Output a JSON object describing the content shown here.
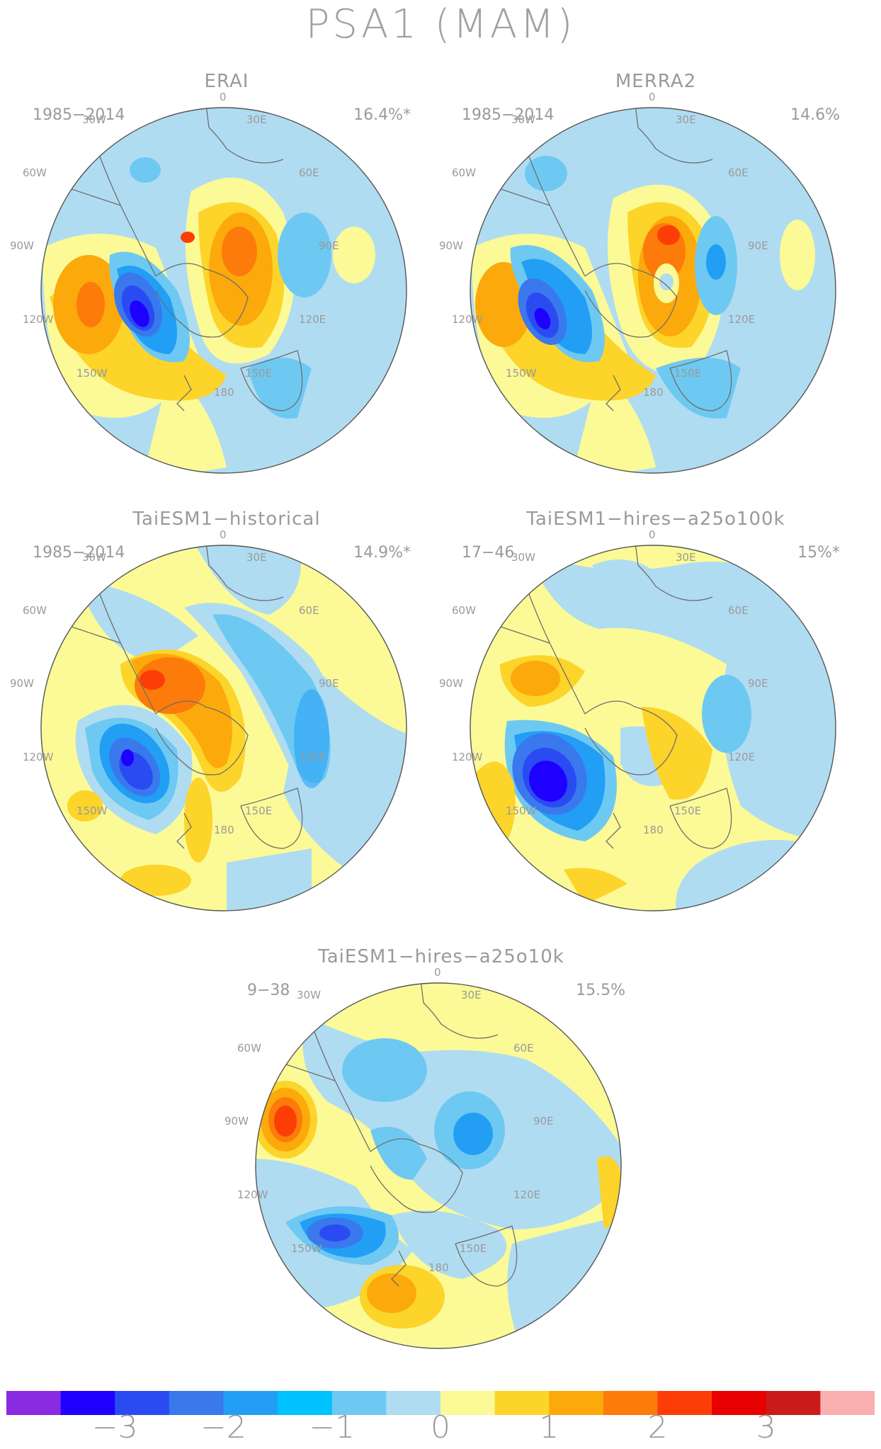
{
  "title": "PSA1 (MAM)",
  "colors": {
    "levels": [
      "#8a2be2",
      "#1e00ff",
      "#2b4bf2",
      "#3a78ee",
      "#229ff5",
      "#00c2ff",
      "#6ec9f2",
      "#b0dcf2",
      "#fbfa96",
      "#fcd42a",
      "#fca90c",
      "#fc7b0a",
      "#fc3e06",
      "#e80000",
      "#cc1b1b",
      "#fab0b0"
    ],
    "coastline": "#6e6e6e",
    "text": "#9a9a9a"
  },
  "colorbar": {
    "ticks": [
      "−3",
      "−2",
      "−1",
      "0",
      "1",
      "2",
      "3"
    ]
  },
  "panels": [
    {
      "name": "ERAI",
      "years": "1985−2014",
      "pct": "16.4%*"
    },
    {
      "name": "MERRA2",
      "years": "1985−2014",
      "pct": "14.6%"
    },
    {
      "name": "TaiESM1−historical",
      "years": "1985−2014",
      "pct": "14.9%*"
    },
    {
      "name": "TaiESM1−hires−a25o100k",
      "years": "17−46",
      "pct": "15%*"
    },
    {
      "name": "TaiESM1−hires−a25o10k",
      "years": "9−38",
      "pct": "15.5%"
    }
  ],
  "lon_labels": [
    "0",
    "30E",
    "60E",
    "90E",
    "120E",
    "150E",
    "180",
    "150W",
    "120W",
    "90W",
    "60W",
    "30W"
  ]
}
